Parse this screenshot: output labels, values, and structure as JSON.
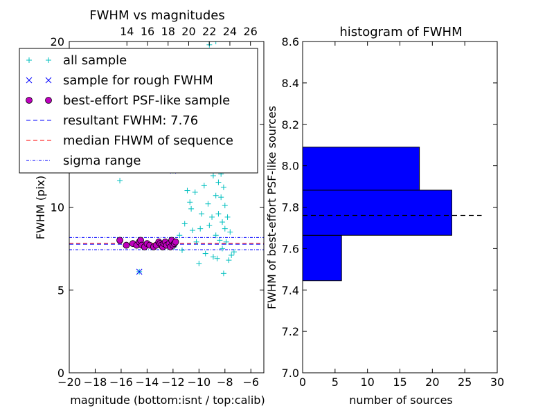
{
  "colors": {
    "all_sample": "#00bfbf",
    "rough_sample": "#0000ff",
    "psf_sample": "#bf00bf",
    "resultant_line": "#0000ff",
    "median_line": "#ff0000",
    "sigma_line": "#0000ff",
    "hist_bar": "#0000ff"
  },
  "chart_data": [
    {
      "type": "scatter",
      "title": "FWHM vs magnitudes",
      "xlabel": "magnitude (bottom:isnt / top:calib)",
      "ylabel": "FWHM (pix)",
      "xlim": [
        -20,
        -5
      ],
      "ylim": [
        0,
        20
      ],
      "x_ticks": [
        -20,
        -18,
        -16,
        -14,
        -12,
        -10,
        -8,
        -6
      ],
      "x_tick_labels": [
        "−20",
        "−18",
        "−16",
        "−14",
        "−12",
        "−10",
        "−8",
        "−6"
      ],
      "y_ticks": [
        0,
        5,
        10,
        15,
        20
      ],
      "y_tick_labels": [
        "0",
        "5",
        "10",
        "15",
        "20"
      ],
      "top_axis": {
        "xlim": [
          8.4,
          27.3
        ],
        "ticks": [
          14,
          16,
          18,
          20,
          22,
          24,
          26
        ],
        "tick_labels": [
          "14",
          "16",
          "18",
          "20",
          "22",
          "24",
          "26"
        ]
      },
      "legend": {
        "placement": "upper-left",
        "entries": [
          {
            "label": "all sample",
            "marker": "plus"
          },
          {
            "label": "sample for rough FWHM",
            "marker": "x"
          },
          {
            "label": "best-effort PSF-like sample",
            "marker": "circle"
          },
          {
            "label": "resultant FWHM: 7.76",
            "line": "dashed"
          },
          {
            "label": "median FHWM of sequence",
            "line": "dashed"
          },
          {
            "label": "sigma range",
            "line": "dashdot"
          }
        ]
      },
      "hlines": {
        "resultant_fwhm": 7.76,
        "median_fwhm": 7.82,
        "sigma_range": [
          7.43,
          8.17
        ]
      },
      "series": [
        {
          "name": "all sample",
          "points": [
            [
              -16.1,
              11.6
            ],
            [
              -14.6,
              6.1
            ],
            [
              -12.0,
              12.2
            ],
            [
              -11.9,
              7.6
            ],
            [
              -11.5,
              8.3
            ],
            [
              -11.3,
              7.4
            ],
            [
              -11.1,
              9.0
            ],
            [
              -10.9,
              11.0
            ],
            [
              -10.7,
              10.3
            ],
            [
              -10.6,
              9.9
            ],
            [
              -10.5,
              8.6
            ],
            [
              -10.3,
              10.9
            ],
            [
              -10.2,
              7.9
            ],
            [
              -10.0,
              6.6
            ],
            [
              -9.9,
              8.7
            ],
            [
              -9.8,
              9.6
            ],
            [
              -9.7,
              13.4
            ],
            [
              -9.6,
              11.3
            ],
            [
              -9.5,
              7.2
            ],
            [
              -9.4,
              12.8
            ],
            [
              -9.3,
              10.2
            ],
            [
              -9.2,
              8.9
            ],
            [
              -9.1,
              14.2
            ],
            [
              -9.0,
              9.4
            ],
            [
              -8.9,
              11.9
            ],
            [
              -8.9,
              7.0
            ],
            [
              -8.8,
              16.0
            ],
            [
              -8.8,
              13.1
            ],
            [
              -8.7,
              10.7
            ],
            [
              -8.7,
              8.3
            ],
            [
              -8.6,
              12.4
            ],
            [
              -8.6,
              6.9
            ],
            [
              -8.5,
              11.5
            ],
            [
              -8.5,
              9.6
            ],
            [
              -8.4,
              13.8
            ],
            [
              -8.4,
              8.0
            ],
            [
              -8.3,
              10.6
            ],
            [
              -8.3,
              12.0
            ],
            [
              -8.2,
              7.5
            ],
            [
              -8.2,
              9.1
            ],
            [
              -8.1,
              11.2
            ],
            [
              -8.1,
              6.0
            ],
            [
              -8.0,
              8.7
            ],
            [
              -8.0,
              10.1
            ],
            [
              -7.9,
              7.9
            ],
            [
              -7.8,
              9.4
            ],
            [
              -7.7,
              6.8
            ],
            [
              -7.6,
              8.5
            ],
            [
              -7.5,
              7.1
            ],
            [
              -7.3,
              7.3
            ],
            [
              -9.2,
              19.8
            ],
            [
              -8.7,
              20.0
            ],
            [
              -10.4,
              17.6
            ],
            [
              -9.6,
              15.5
            ],
            [
              -8.9,
              18.4
            ]
          ]
        },
        {
          "name": "sample for rough FWHM",
          "points": [
            [
              -14.6,
              6.1
            ],
            [
              -12.0,
              12.2
            ]
          ]
        },
        {
          "name": "best-effort PSF-like sample",
          "points": [
            [
              -16.1,
              8.0
            ],
            [
              -15.6,
              7.7
            ],
            [
              -15.1,
              7.8
            ],
            [
              -14.8,
              7.7
            ],
            [
              -14.6,
              7.9
            ],
            [
              -14.5,
              8.0
            ],
            [
              -14.4,
              7.7
            ],
            [
              -14.2,
              7.6
            ],
            [
              -14.0,
              7.8
            ],
            [
              -13.8,
              7.7
            ],
            [
              -13.5,
              7.6
            ],
            [
              -13.3,
              7.7
            ],
            [
              -13.1,
              7.9
            ],
            [
              -13.0,
              7.8
            ],
            [
              -12.9,
              7.7
            ],
            [
              -12.8,
              7.6
            ],
            [
              -12.7,
              7.8
            ],
            [
              -12.6,
              7.9
            ],
            [
              -12.5,
              7.7
            ],
            [
              -12.3,
              7.8
            ],
            [
              -12.2,
              7.6
            ],
            [
              -12.1,
              8.0
            ],
            [
              -12.0,
              7.7
            ],
            [
              -11.9,
              7.8
            ],
            [
              -11.8,
              7.9
            ]
          ]
        }
      ]
    },
    {
      "type": "bar",
      "orientation": "horizontal",
      "title": "histogram of FWHM",
      "xlabel": "number of sources",
      "ylabel": "FWHM of best-effort PSF-like sources",
      "xlim": [
        0,
        30
      ],
      "ylim": [
        7.0,
        8.6
      ],
      "x_ticks": [
        0,
        5,
        10,
        15,
        20,
        25,
        30
      ],
      "x_tick_labels": [
        "0",
        "5",
        "10",
        "15",
        "20",
        "25",
        "30"
      ],
      "y_ticks": [
        7.0,
        7.2,
        7.4,
        7.6,
        7.8,
        8.0,
        8.2,
        8.4,
        8.6
      ],
      "y_tick_labels": [
        "7.0",
        "7.2",
        "7.4",
        "7.6",
        "7.8",
        "8.0",
        "8.2",
        "8.4",
        "8.6"
      ],
      "bins": [
        {
          "low": 7.445,
          "high": 7.664,
          "count": 6
        },
        {
          "low": 7.664,
          "high": 7.882,
          "count": 23
        },
        {
          "low": 7.882,
          "high": 8.09,
          "count": 18
        }
      ],
      "hline": {
        "value": 7.76,
        "xrange": [
          0,
          27.6
        ]
      }
    }
  ]
}
